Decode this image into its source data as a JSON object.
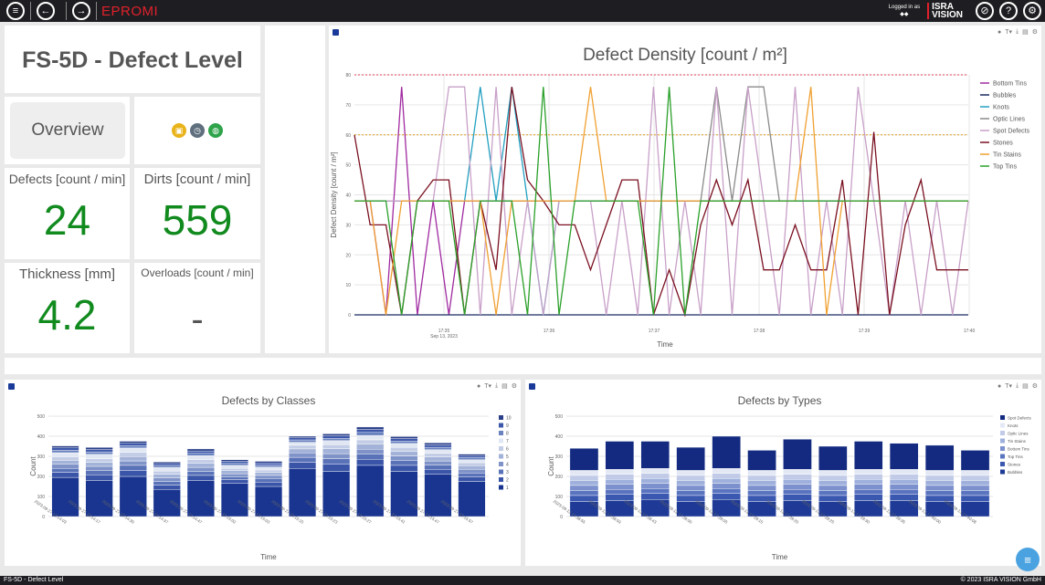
{
  "app": {
    "title": "EPROMI",
    "logged_in": "Logged in as",
    "user": "◆◆",
    "logo_line1": "ISRA",
    "logo_line2": "VISION"
  },
  "panels": {
    "title": "FS-5D - Defect Level",
    "overview": "Overview",
    "defects_label": "Defects [count / min]",
    "defects_value": "24",
    "dirts_label": "Dirts [count / min]",
    "dirts_value": "559",
    "thickness_label": "Thickness [mm]",
    "thickness_value": "4.2",
    "overloads_label": "Overloads [count / min]",
    "overloads_value": "-"
  },
  "status_icons": [
    {
      "icon": "calendar-icon",
      "color": "#e9b31a"
    },
    {
      "icon": "clock-icon",
      "color": "#5f6f7e"
    },
    {
      "icon": "globe-icon",
      "color": "#2ea34a"
    }
  ],
  "footer": {
    "left": "FS-5D - Defect Level",
    "right": "© 2023 ISRA VISION GmbH"
  },
  "chart_data": [
    {
      "type": "line",
      "title": "Defect Density [count / m²]",
      "xlabel": "Time",
      "ylabel": "Defect Density [count / m²]",
      "ylim": [
        0,
        80
      ],
      "yticks": [
        0,
        10,
        20,
        30,
        40,
        50,
        60,
        70,
        80
      ],
      "xticks": [
        "17:35",
        "17:36",
        "17:37",
        "17:38",
        "17:39",
        "17:40"
      ],
      "xsub": "Sep 13, 2023",
      "threshold_lines": [
        {
          "value": 80,
          "color": "#e0405a"
        },
        {
          "value": 60,
          "color": "#e0a020"
        }
      ],
      "legend_position": "right",
      "series": [
        {
          "name": "Bottom Tins",
          "color": "#a02aa0",
          "values": [
            38,
            38,
            0,
            76,
            0,
            38,
            0,
            38,
            38,
            38,
            38,
            38,
            38,
            38,
            38,
            38,
            38,
            38,
            38,
            38,
            38,
            38,
            38,
            38,
            38,
            38,
            38,
            38,
            38,
            38,
            38,
            38,
            38,
            38,
            38,
            38,
            38,
            38,
            38,
            38
          ]
        },
        {
          "name": "Bubbles",
          "color": "#1a2a60",
          "values": [
            0,
            0,
            0,
            0,
            0,
            0,
            0,
            0,
            0,
            0,
            0,
            0,
            0,
            0,
            0,
            0,
            0,
            0,
            0,
            0,
            0,
            0,
            0,
            0,
            0,
            0,
            0,
            0,
            0,
            0,
            0,
            0,
            0,
            0,
            0,
            0,
            0,
            0,
            0,
            0
          ]
        },
        {
          "name": "Knots",
          "color": "#22a0c0",
          "values": [
            38,
            38,
            38,
            38,
            38,
            38,
            38,
            38,
            76,
            38,
            76,
            38,
            0,
            38,
            38,
            38,
            38,
            38,
            38,
            38,
            38,
            38,
            38,
            38,
            38,
            38,
            38,
            38,
            38,
            38,
            38,
            38,
            38,
            38,
            38,
            38,
            38,
            38,
            38,
            38
          ]
        },
        {
          "name": "Optic Lines",
          "color": "#8a8a8a",
          "values": [
            38,
            38,
            38,
            38,
            38,
            38,
            38,
            38,
            38,
            38,
            38,
            38,
            38,
            38,
            38,
            38,
            38,
            38,
            38,
            38,
            38,
            38,
            38,
            76,
            38,
            76,
            76,
            38,
            38,
            38,
            38,
            38,
            38,
            38,
            38,
            38,
            38,
            38,
            38,
            38
          ]
        },
        {
          "name": "Spot Defects",
          "color": "#c8a0c8",
          "values": [
            38,
            38,
            38,
            38,
            38,
            38,
            76,
            76,
            0,
            76,
            0,
            38,
            0,
            38,
            38,
            38,
            0,
            38,
            0,
            76,
            0,
            38,
            0,
            76,
            0,
            76,
            38,
            0,
            76,
            0,
            38,
            0,
            76,
            38,
            0,
            38,
            0,
            38,
            0,
            38
          ]
        },
        {
          "name": "Stones",
          "color": "#7a1020",
          "values": [
            60,
            30,
            30,
            0,
            38,
            45,
            45,
            0,
            38,
            15,
            76,
            45,
            38,
            30,
            30,
            15,
            30,
            45,
            45,
            0,
            15,
            0,
            30,
            45,
            30,
            45,
            15,
            15,
            30,
            15,
            15,
            45,
            0,
            61,
            0,
            30,
            45,
            15,
            15,
            15
          ]
        },
        {
          "name": "Tin Stains",
          "color": "#f0a030",
          "values": [
            38,
            38,
            0,
            38,
            38,
            38,
            38,
            38,
            38,
            0,
            38,
            38,
            38,
            38,
            38,
            76,
            38,
            38,
            38,
            38,
            38,
            38,
            38,
            38,
            38,
            38,
            38,
            38,
            38,
            76,
            0,
            38,
            38,
            38,
            38,
            38,
            38,
            38,
            38,
            38
          ]
        },
        {
          "name": "Top Tins",
          "color": "#2aa02a",
          "values": [
            38,
            38,
            38,
            0,
            38,
            38,
            38,
            0,
            38,
            38,
            38,
            0,
            76,
            0,
            38,
            38,
            38,
            38,
            38,
            0,
            76,
            0,
            38,
            38,
            38,
            38,
            38,
            38,
            38,
            38,
            38,
            38,
            38,
            38,
            38,
            38,
            38,
            38,
            38,
            38
          ]
        }
      ]
    },
    {
      "type": "bar",
      "stacked": true,
      "title": "Defects by Classes",
      "xlabel": "Time",
      "ylabel": "Count",
      "ylim": [
        0,
        500
      ],
      "yticks": [
        0,
        100,
        200,
        300,
        400,
        500
      ],
      "categories": [
        "2023-09-27 12:14:03",
        "2023-09-27 12:14:17",
        "2023-09-27 12:14:30",
        "2023-09-27 12:14:37",
        "2023-09-27 12:14:47",
        "2023-09-27 12:15:02",
        "2023-09-27 12:15:03",
        "2023-09-27 12:15:15",
        "2023-09-27 12:15:23",
        "2023-09-27 12:15:27",
        "2023-09-27 12:15:41",
        "2023-09-27 12:15:47",
        "2023-09-27 12:15:57"
      ],
      "legend_position": "right",
      "series": [
        {
          "name": "1",
          "color": "#1a3590",
          "values": [
            195,
            180,
            200,
            135,
            180,
            165,
            150,
            240,
            225,
            255,
            225,
            210,
            175
          ]
        },
        {
          "name": "2",
          "color": "#3a55a8",
          "values": [
            25,
            28,
            30,
            22,
            25,
            18,
            22,
            30,
            35,
            30,
            30,
            25,
            22
          ]
        },
        {
          "name": "3",
          "color": "#5a72b8",
          "values": [
            20,
            22,
            25,
            18,
            20,
            15,
            18,
            25,
            28,
            25,
            25,
            22,
            20
          ]
        },
        {
          "name": "4",
          "color": "#7f93c8",
          "values": [
            20,
            20,
            22,
            18,
            20,
            15,
            15,
            22,
            25,
            25,
            22,
            20,
            18
          ]
        },
        {
          "name": "5",
          "color": "#a3b2d8",
          "values": [
            20,
            20,
            22,
            18,
            20,
            15,
            15,
            20,
            25,
            25,
            22,
            20,
            18
          ]
        },
        {
          "name": "6",
          "color": "#c3cde6",
          "values": [
            18,
            18,
            20,
            15,
            18,
            12,
            12,
            18,
            20,
            22,
            20,
            18,
            15
          ]
        },
        {
          "name": "7",
          "color": "#e2e8f3",
          "values": [
            20,
            22,
            22,
            18,
            20,
            15,
            15,
            15,
            20,
            22,
            20,
            18,
            15
          ]
        },
        {
          "name": "8",
          "color": "#6a82c0",
          "values": [
            12,
            12,
            12,
            10,
            12,
            10,
            10,
            12,
            12,
            15,
            12,
            12,
            10
          ]
        },
        {
          "name": "9",
          "color": "#3d58aa",
          "values": [
            12,
            12,
            12,
            10,
            12,
            10,
            10,
            10,
            12,
            15,
            12,
            12,
            10
          ]
        },
        {
          "name": "10",
          "color": "#2a3f88",
          "values": [
            10,
            10,
            10,
            8,
            10,
            8,
            8,
            8,
            10,
            12,
            10,
            10,
            8
          ]
        }
      ]
    },
    {
      "type": "bar",
      "stacked": true,
      "title": "Defects by Types",
      "xlabel": "Time",
      "ylabel": "Count",
      "ylim": [
        0,
        500
      ],
      "yticks": [
        0,
        100,
        200,
        300,
        400,
        500
      ],
      "categories": [
        "2023-09-13 17:38:55",
        "2023-09-13 17:38:59",
        "2023-09-13 17:38:43",
        "2023-09-13 17:39:00",
        "2023-09-13 17:39:05",
        "2023-09-13 17:39:15",
        "2023-09-13 17:39:20",
        "2023-09-13 17:39:25",
        "2023-09-13 17:39:30",
        "2023-09-13 17:39:35",
        "2023-09-13 17:40:00",
        "2023-09-13 17:40:08"
      ],
      "legend_position": "right",
      "series": [
        {
          "name": "Bubbles",
          "color": "#1e3a96",
          "values": [
            75,
            80,
            85,
            75,
            85,
            75,
            80,
            75,
            80,
            80,
            75,
            75
          ]
        },
        {
          "name": "Stones",
          "color": "#3b58b0",
          "values": [
            30,
            30,
            30,
            30,
            30,
            30,
            30,
            30,
            30,
            30,
            30,
            30
          ]
        },
        {
          "name": "Top Tins",
          "color": "#5a74c0",
          "values": [
            25,
            25,
            25,
            25,
            25,
            25,
            25,
            25,
            25,
            25,
            25,
            25
          ]
        },
        {
          "name": "Bottom Tins",
          "color": "#7b90cc",
          "values": [
            25,
            25,
            25,
            25,
            25,
            25,
            25,
            25,
            25,
            25,
            25,
            25
          ]
        },
        {
          "name": "Tin Stains",
          "color": "#9fb0dc",
          "values": [
            25,
            25,
            25,
            25,
            25,
            25,
            25,
            25,
            25,
            25,
            25,
            25
          ]
        },
        {
          "name": "Optic Lines",
          "color": "#c1cbe8",
          "values": [
            25,
            25,
            25,
            25,
            25,
            25,
            25,
            25,
            25,
            25,
            25,
            25
          ]
        },
        {
          "name": "Knots",
          "color": "#e3e8f4",
          "values": [
            25,
            25,
            25,
            25,
            25,
            25,
            25,
            25,
            25,
            25,
            25,
            25
          ]
        },
        {
          "name": "Spot Defects",
          "color": "#132a80",
          "values": [
            110,
            140,
            135,
            115,
            160,
            100,
            150,
            120,
            140,
            130,
            125,
            100
          ]
        }
      ]
    }
  ]
}
